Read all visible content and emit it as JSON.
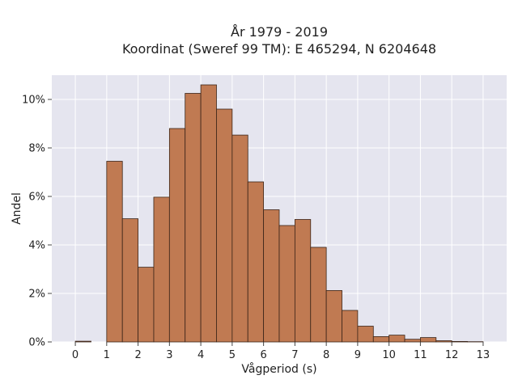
{
  "chart_data": {
    "type": "bar",
    "title_lines": [
      "År 1979 - 2019",
      "Koordinat (Sweref 99 TM): E 465294, N 6204648"
    ],
    "xlabel": "Vågperiod (s)",
    "ylabel": "Andel",
    "xlim": [
      -0.75,
      13.75
    ],
    "ylim": [
      0,
      11.0
    ],
    "bin_width": 0.5,
    "x_ticks": [
      0,
      1,
      2,
      3,
      4,
      5,
      6,
      7,
      8,
      9,
      10,
      11,
      12,
      13
    ],
    "x_tick_labels": [
      "0",
      "1",
      "2",
      "3",
      "4",
      "5",
      "6",
      "7",
      "8",
      "9",
      "10",
      "11",
      "12",
      "13"
    ],
    "y_ticks": [
      0,
      2,
      4,
      6,
      8,
      10
    ],
    "y_tick_labels": [
      "0%",
      "2%",
      "4%",
      "6%",
      "8%",
      "10%"
    ],
    "grid": true,
    "colors": {
      "bar_fill": "#c07a52",
      "bar_edge": "#3a2418",
      "plot_bg": "#e5e5ef",
      "grid": "#ffffff"
    },
    "bins": [
      {
        "x0": 0.0,
        "value": 0.03
      },
      {
        "x0": 1.0,
        "value": 7.45
      },
      {
        "x0": 1.5,
        "value": 5.08
      },
      {
        "x0": 2.0,
        "value": 3.08
      },
      {
        "x0": 2.5,
        "value": 5.97
      },
      {
        "x0": 3.0,
        "value": 8.8
      },
      {
        "x0": 3.5,
        "value": 10.25
      },
      {
        "x0": 4.0,
        "value": 10.6
      },
      {
        "x0": 4.5,
        "value": 9.6
      },
      {
        "x0": 5.0,
        "value": 8.53
      },
      {
        "x0": 5.5,
        "value": 6.6
      },
      {
        "x0": 6.0,
        "value": 5.45
      },
      {
        "x0": 6.5,
        "value": 4.8
      },
      {
        "x0": 7.0,
        "value": 5.05
      },
      {
        "x0": 7.5,
        "value": 3.9
      },
      {
        "x0": 8.0,
        "value": 2.12
      },
      {
        "x0": 8.5,
        "value": 1.3
      },
      {
        "x0": 9.0,
        "value": 0.65
      },
      {
        "x0": 9.5,
        "value": 0.22
      },
      {
        "x0": 10.0,
        "value": 0.28
      },
      {
        "x0": 10.5,
        "value": 0.11
      },
      {
        "x0": 11.0,
        "value": 0.18
      },
      {
        "x0": 11.5,
        "value": 0.05
      },
      {
        "x0": 12.0,
        "value": 0.02
      },
      {
        "x0": 12.5,
        "value": 0.01
      }
    ]
  }
}
